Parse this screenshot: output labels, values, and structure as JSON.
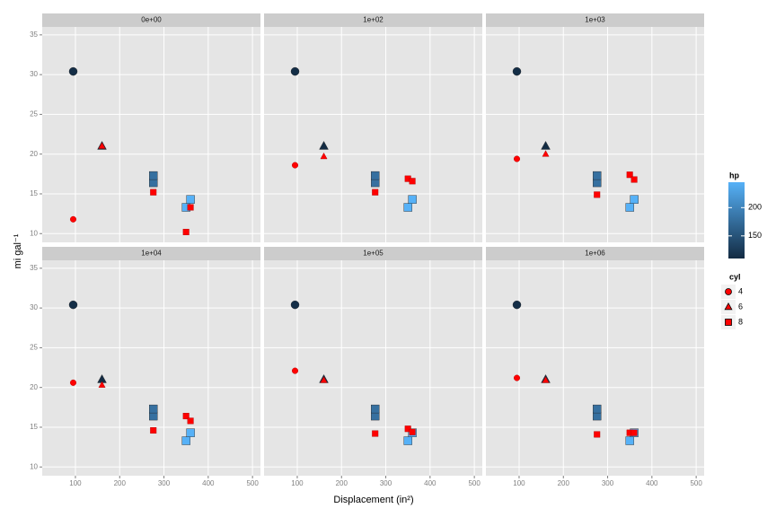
{
  "chart_data": {
    "type": "scatter",
    "x_label": "Displacement (in²)",
    "y_label": "mi gal⁻¹",
    "xlim": [
      25,
      518
    ],
    "ylim": [
      8.9,
      36
    ],
    "xticks": [
      100,
      200,
      300,
      400,
      500
    ],
    "yticks": [
      10,
      15,
      20,
      25,
      30,
      35
    ],
    "grid": true,
    "red_color": "#ff0000",
    "facets": [
      {
        "title": "0e+00",
        "points": [
          {
            "x": 95,
            "y": 30.4,
            "cyl": 4,
            "hp": 113
          },
          {
            "x": 160,
            "y": 21.0,
            "cyl": 6,
            "hp": 110
          },
          {
            "x": 276,
            "y": 16.4,
            "cyl": 8,
            "hp": 180
          },
          {
            "x": 276,
            "y": 17.3,
            "cyl": 8,
            "hp": 180
          },
          {
            "x": 350,
            "y": 13.3,
            "cyl": 8,
            "hp": 245
          },
          {
            "x": 360,
            "y": 14.3,
            "cyl": 8,
            "hp": 245
          }
        ],
        "red_points": [
          {
            "x": 95,
            "y": 11.8,
            "cyl": 4
          },
          {
            "x": 160,
            "y": 21.0,
            "cyl": 6
          },
          {
            "x": 276,
            "y": 15.2,
            "cyl": 8
          },
          {
            "x": 360,
            "y": 13.3,
            "cyl": 8
          },
          {
            "x": 350,
            "y": 10.2,
            "cyl": 8
          }
        ]
      },
      {
        "title": "1e+02",
        "points": [
          {
            "x": 95,
            "y": 30.4,
            "cyl": 4,
            "hp": 113
          },
          {
            "x": 160,
            "y": 21.0,
            "cyl": 6,
            "hp": 110
          },
          {
            "x": 276,
            "y": 16.4,
            "cyl": 8,
            "hp": 180
          },
          {
            "x": 276,
            "y": 17.3,
            "cyl": 8,
            "hp": 180
          },
          {
            "x": 350,
            "y": 13.3,
            "cyl": 8,
            "hp": 245
          },
          {
            "x": 360,
            "y": 14.3,
            "cyl": 8,
            "hp": 245
          }
        ],
        "red_points": [
          {
            "x": 95,
            "y": 18.6,
            "cyl": 4
          },
          {
            "x": 160,
            "y": 19.7,
            "cyl": 6
          },
          {
            "x": 276,
            "y": 15.2,
            "cyl": 8
          },
          {
            "x": 350,
            "y": 16.9,
            "cyl": 8
          },
          {
            "x": 360,
            "y": 16.6,
            "cyl": 8
          }
        ]
      },
      {
        "title": "1e+03",
        "points": [
          {
            "x": 95,
            "y": 30.4,
            "cyl": 4,
            "hp": 113
          },
          {
            "x": 160,
            "y": 21.0,
            "cyl": 6,
            "hp": 110
          },
          {
            "x": 276,
            "y": 16.4,
            "cyl": 8,
            "hp": 180
          },
          {
            "x": 276,
            "y": 17.3,
            "cyl": 8,
            "hp": 180
          },
          {
            "x": 350,
            "y": 13.3,
            "cyl": 8,
            "hp": 245
          },
          {
            "x": 360,
            "y": 14.3,
            "cyl": 8,
            "hp": 245
          }
        ],
        "red_points": [
          {
            "x": 95,
            "y": 19.4,
            "cyl": 4
          },
          {
            "x": 160,
            "y": 20.0,
            "cyl": 6
          },
          {
            "x": 276,
            "y": 14.9,
            "cyl": 8
          },
          {
            "x": 350,
            "y": 17.4,
            "cyl": 8
          },
          {
            "x": 360,
            "y": 16.8,
            "cyl": 8
          }
        ]
      },
      {
        "title": "1e+04",
        "points": [
          {
            "x": 95,
            "y": 30.4,
            "cyl": 4,
            "hp": 113
          },
          {
            "x": 160,
            "y": 21.0,
            "cyl": 6,
            "hp": 110
          },
          {
            "x": 276,
            "y": 16.4,
            "cyl": 8,
            "hp": 180
          },
          {
            "x": 276,
            "y": 17.3,
            "cyl": 8,
            "hp": 180
          },
          {
            "x": 350,
            "y": 13.3,
            "cyl": 8,
            "hp": 245
          },
          {
            "x": 360,
            "y": 14.3,
            "cyl": 8,
            "hp": 245
          }
        ],
        "red_points": [
          {
            "x": 95,
            "y": 20.6,
            "cyl": 4
          },
          {
            "x": 160,
            "y": 20.3,
            "cyl": 6
          },
          {
            "x": 276,
            "y": 14.6,
            "cyl": 8
          },
          {
            "x": 350,
            "y": 16.4,
            "cyl": 8
          },
          {
            "x": 360,
            "y": 15.8,
            "cyl": 8
          }
        ]
      },
      {
        "title": "1e+05",
        "points": [
          {
            "x": 95,
            "y": 30.4,
            "cyl": 4,
            "hp": 113
          },
          {
            "x": 160,
            "y": 21.0,
            "cyl": 6,
            "hp": 110
          },
          {
            "x": 276,
            "y": 16.4,
            "cyl": 8,
            "hp": 180
          },
          {
            "x": 276,
            "y": 17.3,
            "cyl": 8,
            "hp": 180
          },
          {
            "x": 350,
            "y": 13.3,
            "cyl": 8,
            "hp": 245
          },
          {
            "x": 360,
            "y": 14.3,
            "cyl": 8,
            "hp": 245
          }
        ],
        "red_points": [
          {
            "x": 95,
            "y": 22.1,
            "cyl": 4
          },
          {
            "x": 160,
            "y": 20.9,
            "cyl": 6
          },
          {
            "x": 276,
            "y": 14.2,
            "cyl": 8
          },
          {
            "x": 350,
            "y": 14.8,
            "cyl": 8
          },
          {
            "x": 360,
            "y": 14.4,
            "cyl": 8
          }
        ]
      },
      {
        "title": "1e+06",
        "points": [
          {
            "x": 95,
            "y": 30.4,
            "cyl": 4,
            "hp": 113
          },
          {
            "x": 160,
            "y": 21.0,
            "cyl": 6,
            "hp": 110
          },
          {
            "x": 276,
            "y": 16.4,
            "cyl": 8,
            "hp": 180
          },
          {
            "x": 276,
            "y": 17.3,
            "cyl": 8,
            "hp": 180
          },
          {
            "x": 350,
            "y": 13.3,
            "cyl": 8,
            "hp": 245
          },
          {
            "x": 360,
            "y": 14.3,
            "cyl": 8,
            "hp": 245
          }
        ],
        "red_points": [
          {
            "x": 95,
            "y": 21.2,
            "cyl": 4
          },
          {
            "x": 160,
            "y": 20.9,
            "cyl": 6
          },
          {
            "x": 276,
            "y": 14.1,
            "cyl": 8
          },
          {
            "x": 350,
            "y": 14.3,
            "cyl": 8
          },
          {
            "x": 360,
            "y": 14.3,
            "cyl": 8
          }
        ]
      }
    ],
    "hp_legend": {
      "title": "hp",
      "limits": [
        110,
        245
      ],
      "ticks": [
        150,
        200
      ],
      "colors": [
        "#132B43",
        "#56B1F7"
      ]
    },
    "cyl_legend": {
      "title": "cyl",
      "labels": [
        4,
        6,
        8
      ],
      "shapes": [
        "circle",
        "triangle",
        "square"
      ]
    }
  }
}
